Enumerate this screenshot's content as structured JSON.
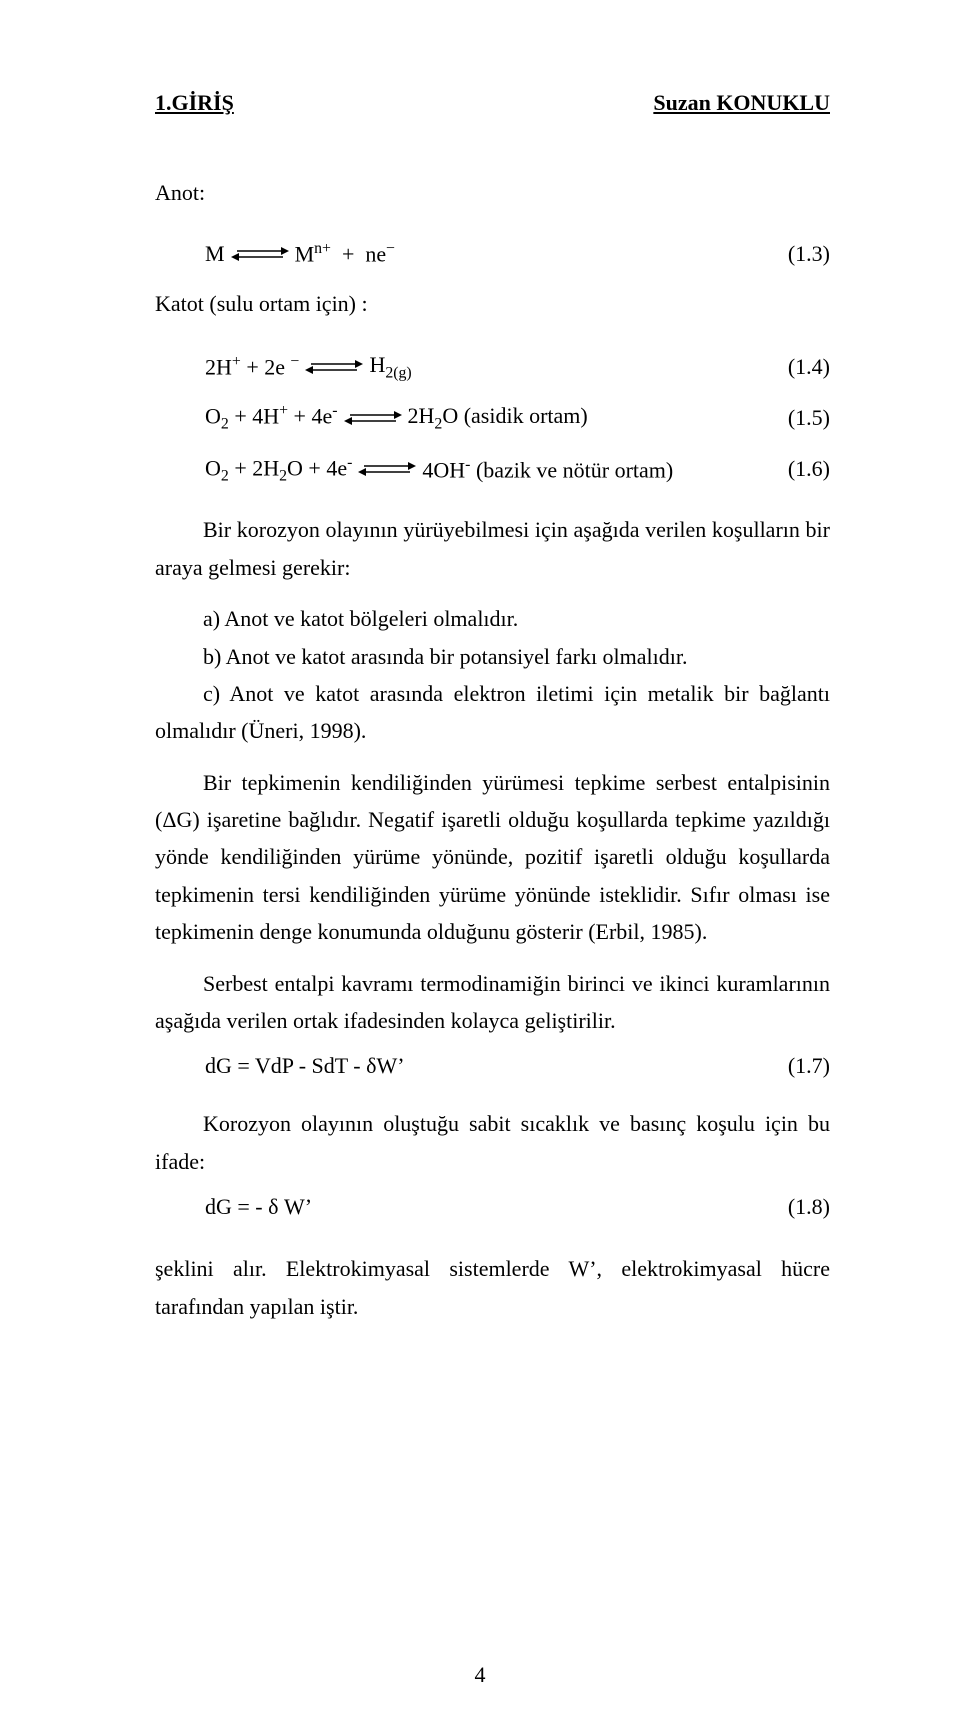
{
  "header": {
    "left": "1.GİRİŞ",
    "right": "Suzan KONUKLU"
  },
  "anot_label": "Anot:",
  "eq3": {
    "lhs_html": "M",
    "rhs_html": "M<span class=\"sup\">n+</span>&nbsp;&nbsp;+&nbsp;&nbsp;ne<span class=\"sup\">−</span>",
    "num": "(1.3)"
  },
  "katot_label": "Katot (sulu ortam için) :",
  "eq4": {
    "lhs_html": "2H<span class=\"sup\">+</span>&nbsp;+&nbsp;2e <span class=\"sup\">−</span>",
    "rhs_html": "H<span class=\"sub\">2(g)</span>",
    "num": "(1.4)"
  },
  "eq5": {
    "lhs_html": "O<span class=\"sub\">2</span>&nbsp;+&nbsp;4H<span class=\"sup\">+</span>&nbsp;+&nbsp;4e<span class=\"sup\">-</span>",
    "rhs_html": "2H<span class=\"sub\">2</span>O&nbsp;(asidik ortam)",
    "num": "(1.5)"
  },
  "eq6": {
    "lhs_html": "O<span class=\"sub\">2</span>&nbsp;+&nbsp;2H<span class=\"sub\">2</span>O&nbsp;+&nbsp;4e<span class=\"sup\">-</span>",
    "rhs_html": "4OH<span class=\"sup\">-</span>&nbsp;(bazik ve nötür ortam)",
    "num": "(1.6)"
  },
  "p1": "Bir korozyon olayının yürüyebilmesi için aşağıda verilen koşulların bir araya gelmesi gerekir:",
  "list_a": "a) Anot ve katot bölgeleri olmalıdır.",
  "list_b": "b) Anot ve katot arasında bir potansiyel farkı olmalıdır.",
  "list_c": "c) Anot ve katot arasında elektron iletimi için metalik bir bağlantı olmalıdır (Üneri, 1998).",
  "p2": "Bir tepkimenin kendiliğinden yürümesi tepkime serbest entalpisinin (ΔG) işaretine bağlıdır. Negatif işaretli olduğu koşullarda tepkime yazıldığı yönde kendiliğinden yürüme yönünde, pozitif işaretli olduğu koşullarda tepkimenin tersi kendiliğinden yürüme yönünde isteklidir. Sıfır olması ise tepkimenin denge konumunda olduğunu gösterir (Erbil, 1985).",
  "p3": "Serbest entalpi kavramı termodinamiğin birinci ve ikinci kuramlarının aşağıda verilen ortak ifadesinden kolayca geliştirilir.",
  "eq7": {
    "lhs_html": "dG  =  VdP  -  SdT  -  δW’",
    "num": "(1.7)"
  },
  "p4": "Korozyon olayının oluştuğu sabit sıcaklık ve basınç koşulu için bu ifade:",
  "eq8": {
    "lhs_html": "dG  =  - δ W’",
    "num": "(1.8)"
  },
  "p5": "şeklini alır. Elektrokimyasal sistemlerde W’, elektrokimyasal hücre tarafından yapılan iştir.",
  "page_number": "4"
}
